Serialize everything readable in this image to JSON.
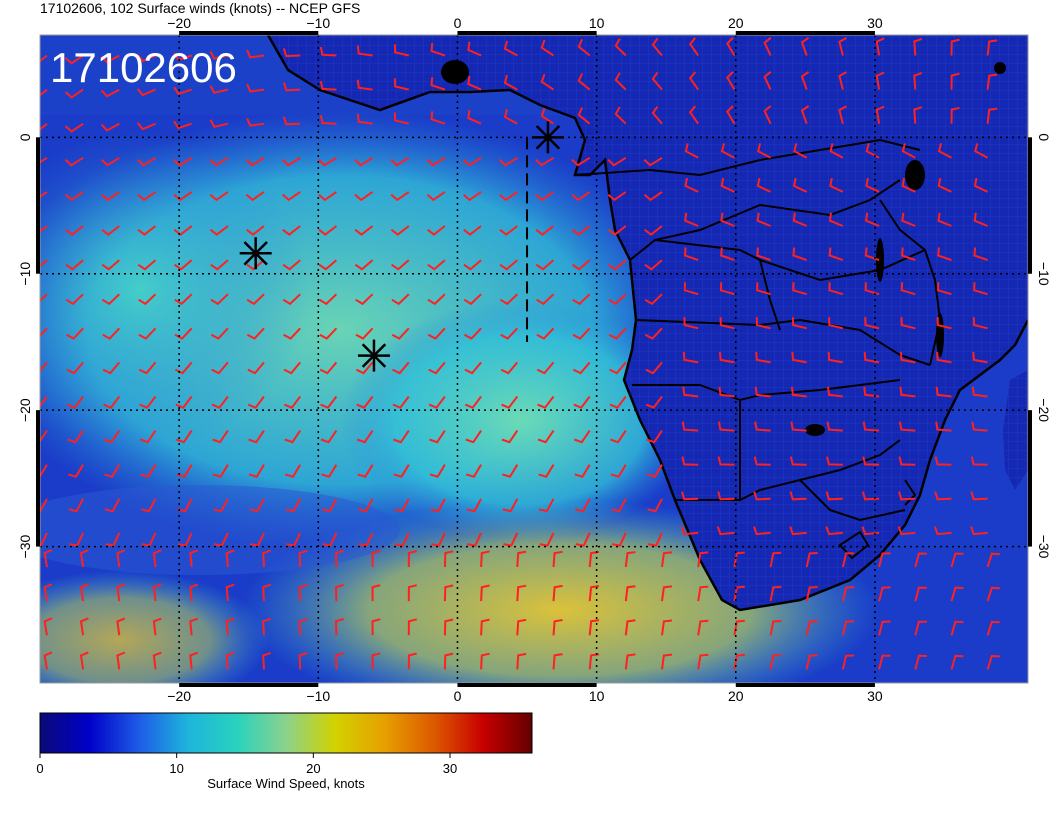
{
  "title": "17102606, 102 Surface winds (knots) -- NCEP GFS",
  "stamp": "17102606",
  "map": {
    "lon_range": [
      -30,
      41
    ],
    "lat_range": [
      -40,
      7.5
    ],
    "lon_ticks": [
      -20,
      -10,
      0,
      10,
      20,
      30
    ],
    "lat_ticks": [
      0,
      -10,
      -20,
      -30
    ],
    "lon_tick_labels": [
      "−20",
      "−10",
      "0",
      "10",
      "20",
      "30"
    ],
    "lat_tick_labels": [
      "0",
      "−10",
      "−20",
      "−30"
    ],
    "grid": true
  },
  "markers": [
    {
      "name": "marker-1",
      "lon": 6.5,
      "lat": 0.0
    },
    {
      "name": "marker-2",
      "lon": -14.5,
      "lat": -8.5
    },
    {
      "name": "marker-3",
      "lon": -6.0,
      "lat": -16.0
    }
  ],
  "track": {
    "lon_start": 5.0,
    "lat_start": 0.0,
    "lon_end": 5.0,
    "lat_end": -15.0
  },
  "colorbar": {
    "title": "Surface Wind Speed, knots",
    "min": 0,
    "max": 36,
    "ticks": [
      0,
      10,
      20,
      30
    ],
    "tick_labels": [
      "0",
      "10",
      "20",
      "30"
    ],
    "colors": [
      "#0a0a78",
      "#0000c8",
      "#1e5ae6",
      "#1eb4dc",
      "#28d2be",
      "#8cd28c",
      "#d2d200",
      "#e6a000",
      "#dc5a00",
      "#c80000",
      "#640000"
    ]
  },
  "colors": {
    "barb": "#ff2020",
    "coast": "#000000",
    "ocean_low": "#1a2ec8",
    "ocean_mid": "#3cc8d0",
    "ocean_high": "#d2d232"
  }
}
